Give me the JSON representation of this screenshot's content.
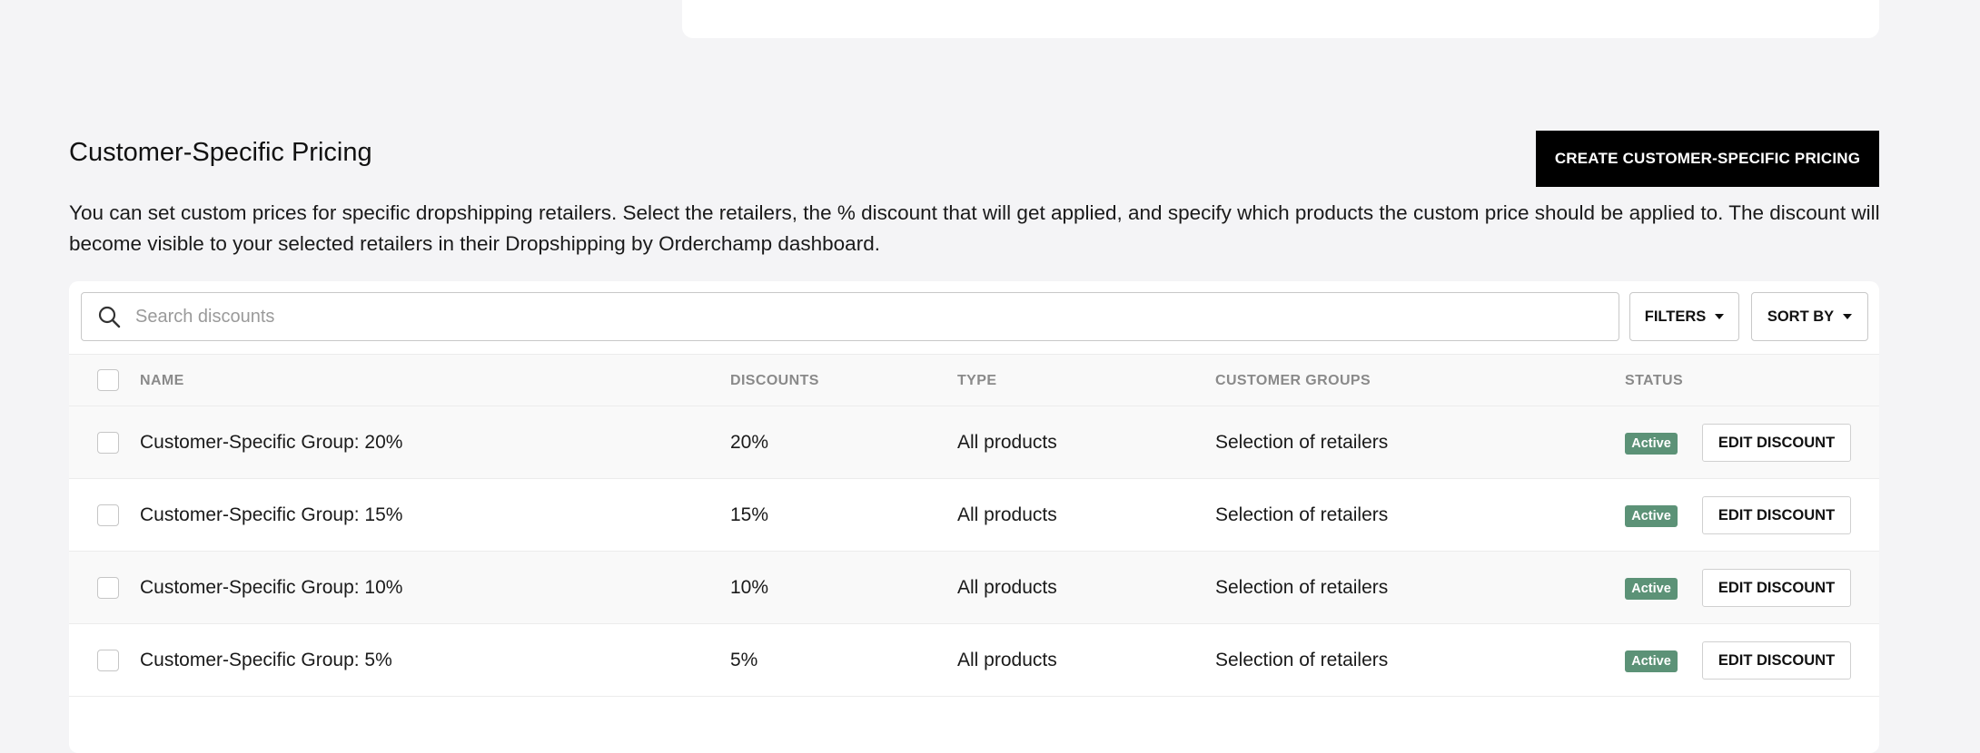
{
  "section": {
    "title": "Customer-Specific Pricing",
    "create_button_label": "CREATE CUSTOMER-SPECIFIC PRICING",
    "description": "You can set custom prices for specific dropshipping retailers. Select the retailers, the % discount that will get applied, and specify which products the custom price should be applied to. The discount will become visible to your selected retailers in their Dropshipping by Orderchamp dashboard."
  },
  "toolbar": {
    "search_placeholder": "Search discounts",
    "search_value": "",
    "search_icon": "search-icon",
    "filters_label": "FILTERS",
    "sort_label": "SORT BY"
  },
  "table": {
    "columns": {
      "name": "NAME",
      "discounts": "DISCOUNTS",
      "type": "TYPE",
      "customer_groups": "CUSTOMER GROUPS",
      "status": "STATUS"
    },
    "rows": [
      {
        "name": "Customer-Specific Group: 20%",
        "discount": "20%",
        "type": "All products",
        "groups": "Selection of retailers",
        "status": "Active",
        "action": "EDIT DISCOUNT"
      },
      {
        "name": "Customer-Specific Group: 15%",
        "discount": "15%",
        "type": "All products",
        "groups": "Selection of retailers",
        "status": "Active",
        "action": "EDIT DISCOUNT"
      },
      {
        "name": "Customer-Specific Group: 10%",
        "discount": "10%",
        "type": "All products",
        "groups": "Selection of retailers",
        "status": "Active",
        "action": "EDIT DISCOUNT"
      },
      {
        "name": "Customer-Specific Group: 5%",
        "discount": "5%",
        "type": "All products",
        "groups": "Selection of retailers",
        "status": "Active",
        "action": "EDIT DISCOUNT"
      }
    ]
  },
  "colors": {
    "page_background": "#f4f4f6",
    "primary_button": "#000000",
    "active_badge": "#5c9277",
    "header_text": "#8a8a8a"
  }
}
